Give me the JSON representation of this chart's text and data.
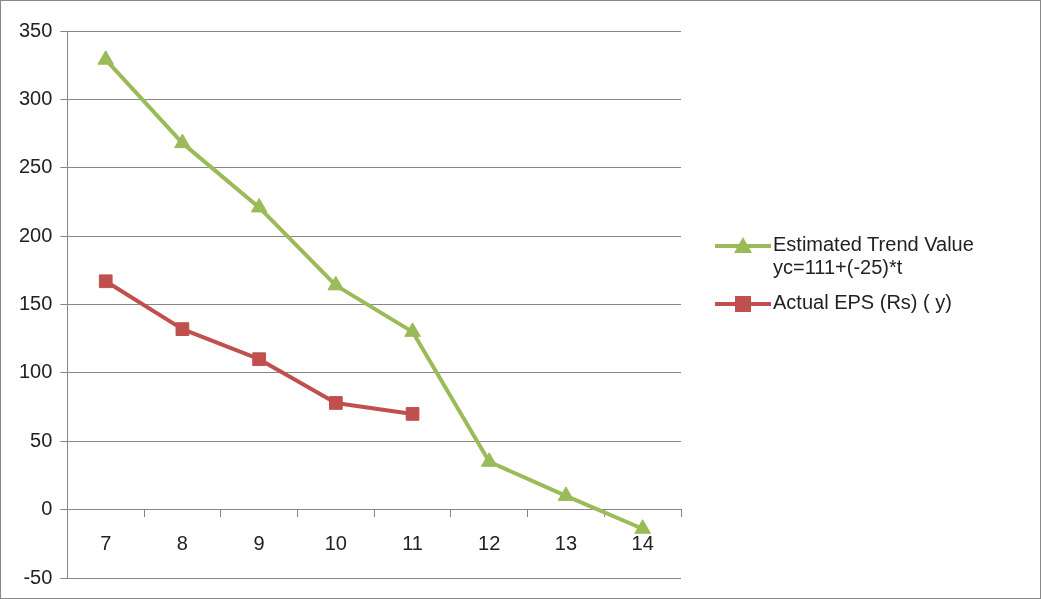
{
  "chart_data": {
    "type": "line",
    "categories": [
      "7",
      "8",
      "9",
      "10",
      "11",
      "12",
      "13",
      "14"
    ],
    "series": [
      {
        "name": "Estimated Trend Value yc=111+(-25)*t",
        "color": "#9bbb59",
        "marker": "triangle",
        "values": [
          329,
          268,
          221,
          164,
          130,
          35,
          10,
          -14
        ]
      },
      {
        "name": "Actual EPS (Rs) ( y)",
        "color": "#c0504d",
        "marker": "square",
        "values": [
          167,
          132,
          110,
          78,
          70,
          null,
          null,
          null
        ]
      }
    ],
    "ylim": [
      -50,
      350
    ],
    "yticks": [
      -50,
      0,
      50,
      100,
      150,
      200,
      250,
      300,
      350
    ],
    "grid": "y",
    "legend": "right"
  }
}
